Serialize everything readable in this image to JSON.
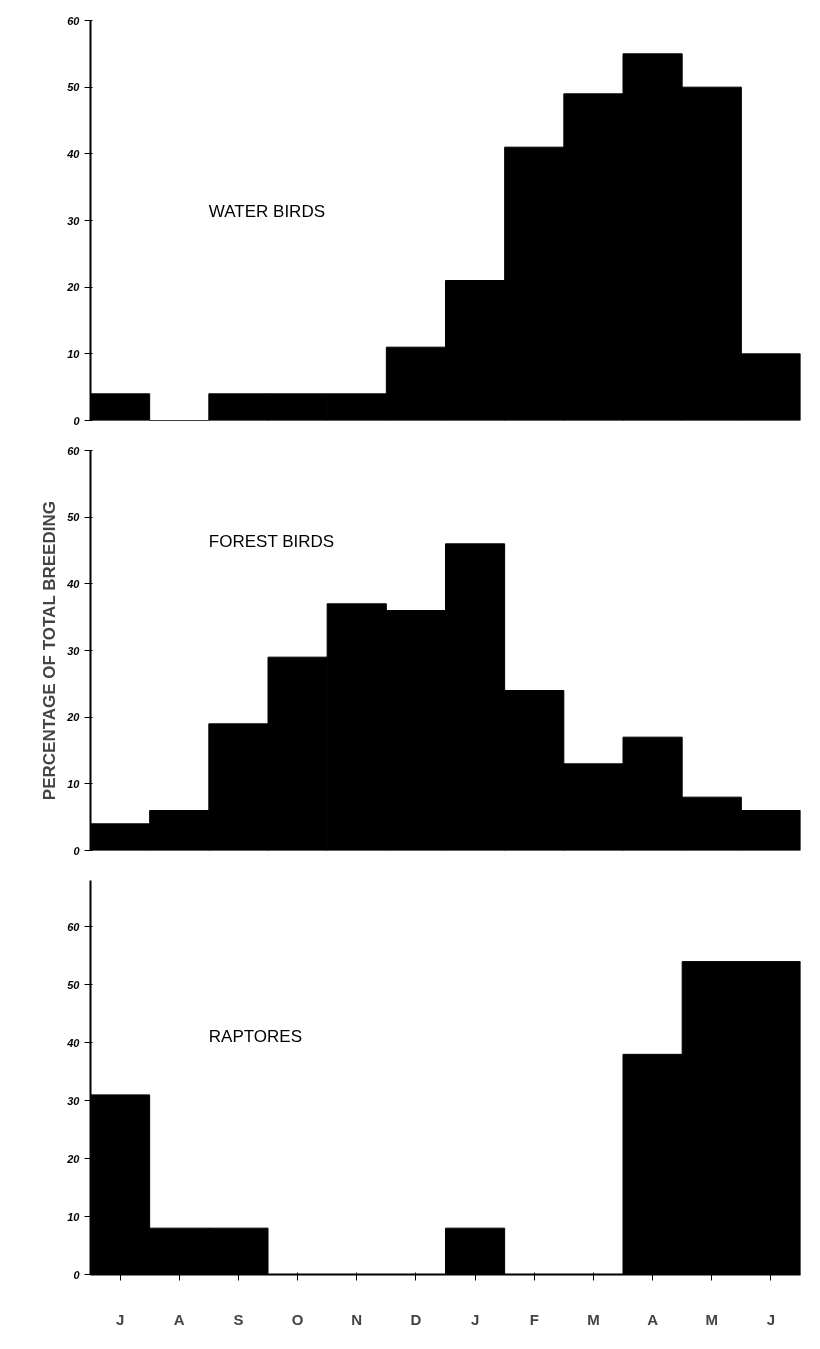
{
  "chart_data": [
    {
      "type": "bar",
      "title": "WATER BIRDS",
      "categories": [
        null,
        null,
        null,
        null,
        null,
        null,
        null,
        null,
        null,
        null,
        null,
        null
      ],
      "values": [
        4,
        0,
        4,
        4,
        4,
        11,
        21,
        41,
        49,
        55,
        50,
        10
      ],
      "color": "#000000",
      "ylim": [
        0,
        60
      ],
      "yticks": [
        0,
        10,
        20,
        30,
        40,
        50,
        60
      ],
      "tick_labels": "y",
      "grid": false
    },
    {
      "type": "bar",
      "title": "FOREST BIRDS",
      "ylabel": "PERCENTAGE OF TOTAL BREEDING",
      "categories": [
        null,
        null,
        null,
        null,
        null,
        null,
        null,
        null,
        null,
        null,
        null,
        null
      ],
      "values": [
        4,
        6,
        19,
        29,
        37,
        36,
        46,
        24,
        13,
        17,
        8,
        6
      ],
      "color": "#000000",
      "ylim": [
        0,
        60
      ],
      "yticks": [
        0,
        10,
        20,
        30,
        40,
        50,
        60
      ],
      "tick_labels": "y",
      "grid": false
    },
    {
      "type": "bar",
      "title": "RAPTORES",
      "categories": [
        "J",
        "A",
        "S",
        "O",
        "N",
        "D",
        "J",
        "F",
        "M",
        "A",
        "M",
        "J"
      ],
      "values": [
        31,
        8,
        8,
        0,
        0,
        0,
        8,
        0,
        0,
        38,
        54,
        54
      ],
      "color": "#000000",
      "ylim": [
        0,
        68
      ],
      "yticks": [
        0,
        10,
        20,
        30,
        40,
        50,
        60
      ],
      "grid": false
    }
  ]
}
